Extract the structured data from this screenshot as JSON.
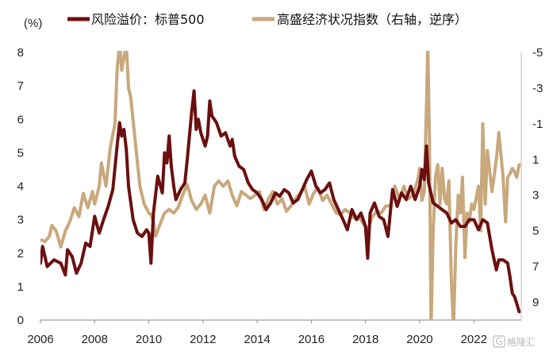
{
  "chart_data": {
    "type": "line",
    "unit_label": "(%)",
    "xlim": [
      2006,
      2023.75
    ],
    "x_ticks": [
      2006,
      2008,
      2010,
      2012,
      2014,
      2016,
      2018,
      2020,
      2022
    ],
    "left_axis": {
      "min": 0,
      "max": 8,
      "ticks": [
        0,
        1,
        2,
        3,
        4,
        5,
        6,
        7,
        8
      ]
    },
    "right_axis": {
      "min": -5,
      "max": 10,
      "reversed": true,
      "ticks": [
        -5,
        -3,
        -1,
        1,
        3,
        5,
        7,
        9
      ]
    },
    "legend": [
      {
        "name": "风险溢价：标普500",
        "color": "#6b0f0f"
      },
      {
        "name": "高盛经济状况指数（右轴，逆序）",
        "color": "#c8a87c"
      }
    ],
    "series": [
      {
        "name": "风险溢价：标普500",
        "color": "#6b0f0f",
        "axis": "left",
        "points": [
          [
            2006.0,
            1.7
          ],
          [
            2006.08,
            2.2
          ],
          [
            2006.25,
            1.6
          ],
          [
            2006.5,
            1.8
          ],
          [
            2006.75,
            1.7
          ],
          [
            2006.92,
            1.35
          ],
          [
            2007.0,
            2.1
          ],
          [
            2007.17,
            1.9
          ],
          [
            2007.33,
            1.4
          ],
          [
            2007.5,
            1.7
          ],
          [
            2007.67,
            2.3
          ],
          [
            2007.83,
            2.2
          ],
          [
            2008.0,
            3.1
          ],
          [
            2008.17,
            2.6
          ],
          [
            2008.33,
            3.0
          ],
          [
            2008.5,
            3.4
          ],
          [
            2008.67,
            3.9
          ],
          [
            2008.83,
            5.2
          ],
          [
            2008.92,
            5.9
          ],
          [
            2009.0,
            5.5
          ],
          [
            2009.08,
            5.7
          ],
          [
            2009.17,
            5.1
          ],
          [
            2009.25,
            4.0
          ],
          [
            2009.42,
            3.0
          ],
          [
            2009.58,
            2.6
          ],
          [
            2009.75,
            2.5
          ],
          [
            2009.92,
            2.7
          ],
          [
            2010.0,
            2.6
          ],
          [
            2010.08,
            1.7
          ],
          [
            2010.17,
            3.2
          ],
          [
            2010.33,
            4.3
          ],
          [
            2010.5,
            3.8
          ],
          [
            2010.58,
            5.0
          ],
          [
            2010.67,
            4.7
          ],
          [
            2010.75,
            5.5
          ],
          [
            2010.83,
            4.6
          ],
          [
            2010.92,
            4.0
          ],
          [
            2011.0,
            3.6
          ],
          [
            2011.17,
            3.9
          ],
          [
            2011.33,
            4.1
          ],
          [
            2011.42,
            4.8
          ],
          [
            2011.58,
            6.2
          ],
          [
            2011.67,
            6.85
          ],
          [
            2011.75,
            5.7
          ],
          [
            2011.83,
            6.0
          ],
          [
            2011.92,
            5.6
          ],
          [
            2012.08,
            5.2
          ],
          [
            2012.17,
            5.5
          ],
          [
            2012.25,
            6.55
          ],
          [
            2012.33,
            6.1
          ],
          [
            2012.5,
            5.9
          ],
          [
            2012.67,
            5.5
          ],
          [
            2012.83,
            5.6
          ],
          [
            2013.0,
            5.2
          ],
          [
            2013.08,
            5.4
          ],
          [
            2013.17,
            4.9
          ],
          [
            2013.33,
            4.6
          ],
          [
            2013.5,
            4.5
          ],
          [
            2013.67,
            4.1
          ],
          [
            2013.83,
            3.9
          ],
          [
            2014.0,
            3.8
          ],
          [
            2014.17,
            3.6
          ],
          [
            2014.33,
            3.3
          ],
          [
            2014.5,
            3.5
          ],
          [
            2014.67,
            3.8
          ],
          [
            2014.83,
            3.7
          ],
          [
            2015.0,
            3.9
          ],
          [
            2015.17,
            3.8
          ],
          [
            2015.33,
            3.5
          ],
          [
            2015.5,
            3.6
          ],
          [
            2015.67,
            3.9
          ],
          [
            2015.83,
            4.2
          ],
          [
            2016.0,
            4.45
          ],
          [
            2016.17,
            4.0
          ],
          [
            2016.33,
            3.8
          ],
          [
            2016.5,
            3.9
          ],
          [
            2016.67,
            4.1
          ],
          [
            2016.83,
            3.6
          ],
          [
            2017.0,
            3.3
          ],
          [
            2017.17,
            3.0
          ],
          [
            2017.33,
            2.7
          ],
          [
            2017.5,
            3.3
          ],
          [
            2017.67,
            3.0
          ],
          [
            2017.83,
            3.2
          ],
          [
            2018.0,
            2.8
          ],
          [
            2018.08,
            1.85
          ],
          [
            2018.17,
            3.2
          ],
          [
            2018.33,
            3.5
          ],
          [
            2018.5,
            3.1
          ],
          [
            2018.67,
            3.0
          ],
          [
            2018.83,
            2.5
          ],
          [
            2019.0,
            3.9
          ],
          [
            2019.17,
            3.4
          ],
          [
            2019.33,
            3.8
          ],
          [
            2019.5,
            3.6
          ],
          [
            2019.67,
            4.0
          ],
          [
            2019.83,
            3.6
          ],
          [
            2020.0,
            4.0
          ],
          [
            2020.08,
            4.5
          ],
          [
            2020.17,
            4.2
          ],
          [
            2020.25,
            5.2
          ],
          [
            2020.33,
            4.1
          ],
          [
            2020.5,
            3.5
          ],
          [
            2020.67,
            3.4
          ],
          [
            2020.83,
            3.3
          ],
          [
            2021.0,
            3.2
          ],
          [
            2021.17,
            2.9
          ],
          [
            2021.33,
            3.0
          ],
          [
            2021.5,
            2.8
          ],
          [
            2021.67,
            2.8
          ],
          [
            2021.83,
            3.0
          ],
          [
            2022.0,
            3.0
          ],
          [
            2022.17,
            2.7
          ],
          [
            2022.33,
            3.0
          ],
          [
            2022.5,
            2.9
          ],
          [
            2022.67,
            2.1
          ],
          [
            2022.83,
            1.5
          ],
          [
            2022.92,
            1.8
          ],
          [
            2023.08,
            1.8
          ],
          [
            2023.25,
            1.7
          ],
          [
            2023.33,
            1.3
          ],
          [
            2023.42,
            0.8
          ],
          [
            2023.5,
            0.7
          ],
          [
            2023.58,
            0.5
          ],
          [
            2023.67,
            0.25
          ]
        ]
      },
      {
        "name": "高盛经济状况指数（右轴，逆序）",
        "color": "#c8a87c",
        "axis": "right",
        "points": [
          [
            2006.0,
            5.5
          ],
          [
            2006.17,
            5.6
          ],
          [
            2006.33,
            5.3
          ],
          [
            2006.42,
            4.7
          ],
          [
            2006.58,
            5.0
          ],
          [
            2006.75,
            5.9
          ],
          [
            2006.92,
            5.0
          ],
          [
            2007.08,
            4.5
          ],
          [
            2007.25,
            3.7
          ],
          [
            2007.42,
            4.2
          ],
          [
            2007.58,
            2.9
          ],
          [
            2007.75,
            3.7
          ],
          [
            2007.92,
            2.8
          ],
          [
            2008.0,
            3.5
          ],
          [
            2008.17,
            2.5
          ],
          [
            2008.25,
            1.2
          ],
          [
            2008.42,
            2.5
          ],
          [
            2008.58,
            0.3
          ],
          [
            2008.75,
            -1.0
          ],
          [
            2008.83,
            -4.0
          ],
          [
            2008.92,
            -5.5
          ],
          [
            2009.0,
            -4.0
          ],
          [
            2009.17,
            -5.5
          ],
          [
            2009.25,
            -3.0
          ],
          [
            2009.33,
            -2.5
          ],
          [
            2009.5,
            0.0
          ],
          [
            2009.67,
            2.5
          ],
          [
            2009.83,
            3.5
          ],
          [
            2010.0,
            4.0
          ],
          [
            2010.08,
            4.1
          ],
          [
            2010.17,
            4.5
          ],
          [
            2010.25,
            5.3
          ],
          [
            2010.42,
            4.6
          ],
          [
            2010.58,
            4.0
          ],
          [
            2010.75,
            3.8
          ],
          [
            2010.92,
            4.0
          ],
          [
            2011.08,
            3.7
          ],
          [
            2011.25,
            3.0
          ],
          [
            2011.42,
            2.4
          ],
          [
            2011.58,
            3.3
          ],
          [
            2011.75,
            3.8
          ],
          [
            2011.92,
            3.5
          ],
          [
            2012.08,
            3.0
          ],
          [
            2012.25,
            4.0
          ],
          [
            2012.42,
            2.5
          ],
          [
            2012.58,
            2.2
          ],
          [
            2012.75,
            2.5
          ],
          [
            2012.92,
            2.2
          ],
          [
            2013.08,
            3.0
          ],
          [
            2013.25,
            3.6
          ],
          [
            2013.42,
            2.8
          ],
          [
            2013.58,
            3.0
          ],
          [
            2013.75,
            3.2
          ],
          [
            2013.92,
            3.0
          ],
          [
            2014.08,
            2.8
          ],
          [
            2014.25,
            3.8
          ],
          [
            2014.42,
            3.2
          ],
          [
            2014.58,
            2.8
          ],
          [
            2014.75,
            3.5
          ],
          [
            2014.92,
            3.2
          ],
          [
            2015.08,
            3.9
          ],
          [
            2015.25,
            3.6
          ],
          [
            2015.42,
            3.2
          ],
          [
            2015.58,
            2.9
          ],
          [
            2015.75,
            2.5
          ],
          [
            2015.92,
            3.5
          ],
          [
            2016.08,
            2.9
          ],
          [
            2016.25,
            2.6
          ],
          [
            2016.42,
            3.3
          ],
          [
            2016.58,
            3.0
          ],
          [
            2016.75,
            3.5
          ],
          [
            2016.92,
            4.0
          ],
          [
            2017.08,
            4.1
          ],
          [
            2017.25,
            3.8
          ],
          [
            2017.42,
            4.0
          ],
          [
            2017.58,
            4.3
          ],
          [
            2017.75,
            4.2
          ],
          [
            2017.92,
            4.6
          ],
          [
            2018.08,
            5.0
          ],
          [
            2018.25,
            4.2
          ],
          [
            2018.42,
            3.9
          ],
          [
            2018.58,
            4.0
          ],
          [
            2018.75,
            3.6
          ],
          [
            2018.92,
            3.6
          ],
          [
            2019.08,
            2.5
          ],
          [
            2019.25,
            3.2
          ],
          [
            2019.42,
            2.5
          ],
          [
            2019.58,
            3.2
          ],
          [
            2019.75,
            3.0
          ],
          [
            2019.92,
            2.2
          ],
          [
            2020.0,
            1.5
          ],
          [
            2020.08,
            3.3
          ],
          [
            2020.17,
            2.8
          ],
          [
            2020.25,
            -2.0
          ],
          [
            2020.3,
            -5.5
          ],
          [
            2020.36,
            0.0
          ],
          [
            2020.42,
            10.5
          ],
          [
            2020.5,
            5.0
          ],
          [
            2020.58,
            2.0
          ],
          [
            2020.67,
            1.3
          ],
          [
            2020.75,
            3.5
          ],
          [
            2020.83,
            1.5
          ],
          [
            2020.92,
            3.2
          ],
          [
            2021.0,
            3.5
          ],
          [
            2021.08,
            2.2
          ],
          [
            2021.17,
            7.8
          ],
          [
            2021.25,
            10.5
          ],
          [
            2021.33,
            6.0
          ],
          [
            2021.42,
            3.0
          ],
          [
            2021.5,
            4.0
          ],
          [
            2021.58,
            2.0
          ],
          [
            2021.67,
            6.5
          ],
          [
            2021.75,
            4.0
          ],
          [
            2021.83,
            4.5
          ],
          [
            2021.92,
            3.5
          ],
          [
            2022.0,
            3.8
          ],
          [
            2022.17,
            2.5
          ],
          [
            2022.25,
            5.0
          ],
          [
            2022.33,
            -1.0
          ],
          [
            2022.42,
            3.5
          ],
          [
            2022.5,
            0.5
          ],
          [
            2022.67,
            2.8
          ],
          [
            2022.83,
            1.0
          ],
          [
            2022.92,
            -0.5
          ],
          [
            2023.08,
            2.0
          ],
          [
            2023.17,
            4.5
          ],
          [
            2023.25,
            2.0
          ],
          [
            2023.33,
            1.8
          ],
          [
            2023.42,
            1.5
          ],
          [
            2023.5,
            1.7
          ],
          [
            2023.58,
            2.0
          ],
          [
            2023.67,
            1.3
          ]
        ]
      }
    ]
  },
  "watermark": {
    "text": "格隆汇",
    "mark": "G"
  }
}
